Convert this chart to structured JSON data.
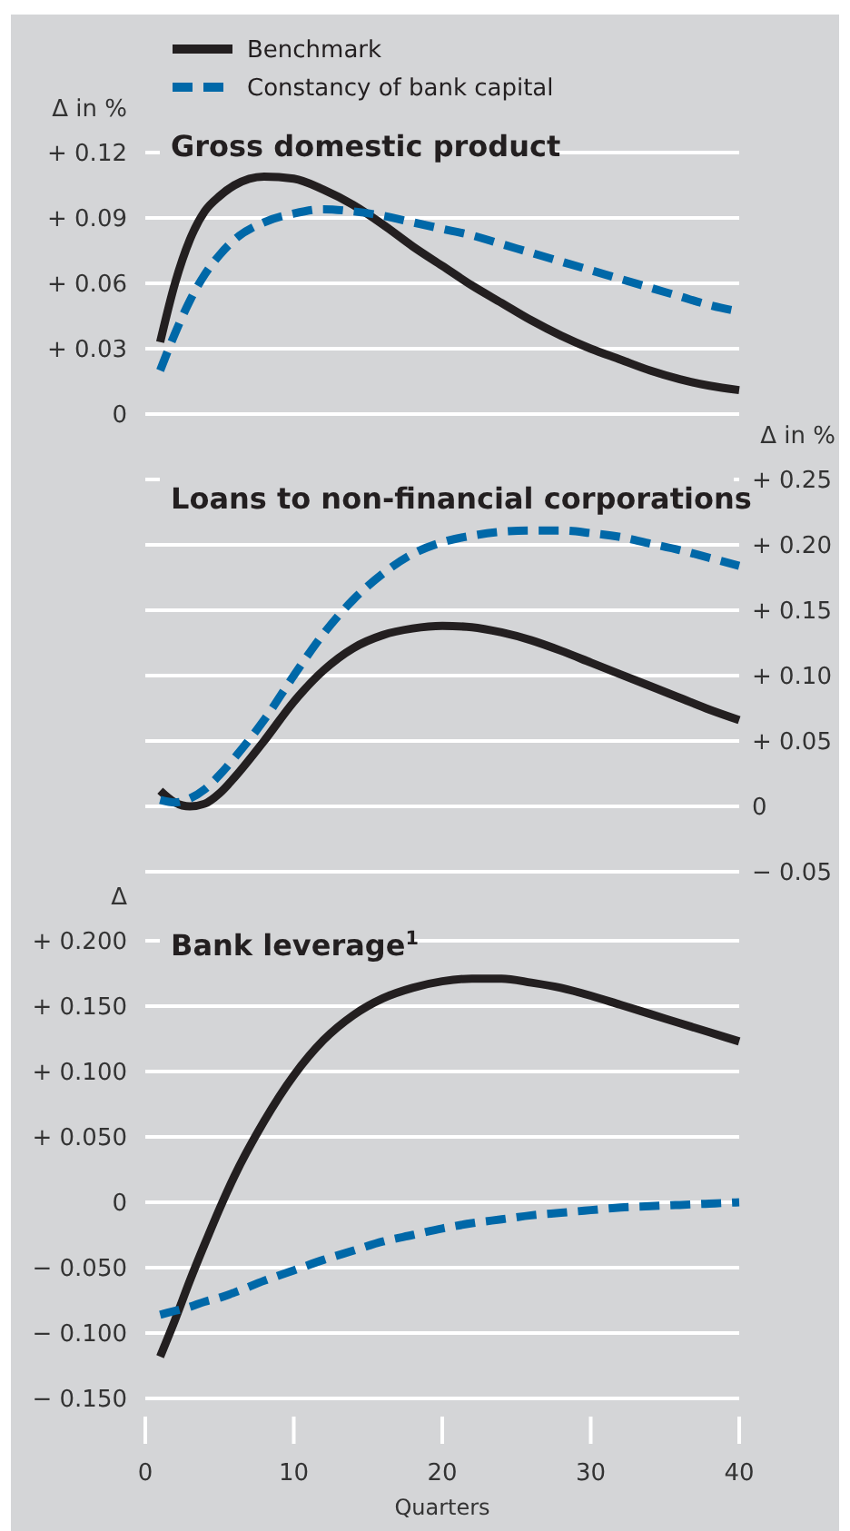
{
  "chart_data": [
    {
      "type": "line",
      "title": "Gross domestic product",
      "ylabel": "Δ in %",
      "legend": "top left",
      "grid": "y",
      "tick_labels": "y",
      "xlim": [
        0,
        40
      ],
      "ylim": [
        0,
        0.12
      ],
      "yticks": [
        {
          "value": 0,
          "label": "0"
        },
        {
          "value": 0.03,
          "label": "+ 0.03"
        },
        {
          "value": 0.06,
          "label": "+ 0.06"
        },
        {
          "value": 0.09,
          "label": "+ 0.09"
        },
        {
          "value": 0.12,
          "label": "+ 0.12"
        }
      ],
      "x": [
        1,
        2,
        3,
        4,
        5,
        6,
        8,
        10,
        12,
        14,
        16,
        18,
        20,
        22,
        24,
        26,
        28,
        30,
        32,
        34,
        36,
        38,
        40
      ],
      "series": [
        {
          "name": "Benchmark",
          "color": "#231f20",
          "line_style": "solid",
          "values": [
            0.033,
            0.06,
            0.08,
            0.093,
            0.1,
            0.105,
            0.109,
            0.108,
            0.103,
            0.096,
            0.087,
            0.077,
            0.068,
            0.059,
            0.051,
            0.043,
            0.036,
            0.03,
            0.025,
            0.02,
            0.016,
            0.013,
            0.011
          ]
        },
        {
          "name": "Constancy of bank capital",
          "color": "#0068a8",
          "line_style": "dashed",
          "values": [
            0.02,
            0.037,
            0.052,
            0.064,
            0.073,
            0.08,
            0.088,
            0.092,
            0.094,
            0.093,
            0.091,
            0.088,
            0.085,
            0.082,
            0.078,
            0.074,
            0.07,
            0.066,
            0.062,
            0.058,
            0.054,
            0.05,
            0.047
          ]
        }
      ]
    },
    {
      "type": "line",
      "title": "Loans to non-financial corporations",
      "y2label": "Δ in %",
      "grid": "y",
      "tick_labels": "y",
      "xlim": [
        0,
        40
      ],
      "y2lim": [
        -0.05,
        0.25
      ],
      "y2ticks": [
        {
          "value": -0.05,
          "label": "− 0.05"
        },
        {
          "value": 0,
          "label": "0"
        },
        {
          "value": 0.05,
          "label": "+ 0.05"
        },
        {
          "value": 0.1,
          "label": "+ 0.10"
        },
        {
          "value": 0.15,
          "label": "+ 0.15"
        },
        {
          "value": 0.2,
          "label": "+ 0.20"
        },
        {
          "value": 0.25,
          "label": "+ 0.25"
        }
      ],
      "x": [
        1,
        2,
        3,
        4,
        5,
        6,
        8,
        10,
        12,
        14,
        16,
        18,
        20,
        22,
        24,
        26,
        28,
        30,
        32,
        34,
        36,
        38,
        40
      ],
      "series": [
        {
          "color": "#231f20",
          "axis": "y2",
          "line_style": "solid",
          "values": [
            0.012,
            0.003,
            0.0,
            0.002,
            0.01,
            0.022,
            0.05,
            0.08,
            0.104,
            0.121,
            0.131,
            0.136,
            0.138,
            0.137,
            0.133,
            0.127,
            0.119,
            0.11,
            0.101,
            0.092,
            0.083,
            0.074,
            0.066
          ]
        },
        {
          "color": "#0068a8",
          "axis": "y2",
          "line_style": "dashed",
          "values": [
            0.005,
            0.003,
            0.006,
            0.013,
            0.024,
            0.037,
            0.066,
            0.1,
            0.132,
            0.158,
            0.178,
            0.193,
            0.202,
            0.207,
            0.21,
            0.211,
            0.211,
            0.209,
            0.206,
            0.201,
            0.196,
            0.19,
            0.184
          ]
        }
      ]
    },
    {
      "type": "line",
      "title": "Bank leverage$^{1}$",
      "ylabel": "Δ",
      "xlabel": "Quarters",
      "grid": "y",
      "xlim": [
        0,
        40
      ],
      "xticks": [
        0,
        10,
        20,
        30,
        40
      ],
      "ylim": [
        -0.15,
        0.2
      ],
      "yticks": [
        {
          "value": -0.15,
          "label": "− 0.150"
        },
        {
          "value": -0.1,
          "label": "− 0.100"
        },
        {
          "value": -0.05,
          "label": "− 0.050"
        },
        {
          "value": 0,
          "label": "0"
        },
        {
          "value": 0.05,
          "label": "+ 0.050"
        },
        {
          "value": 0.1,
          "label": "+ 0.100"
        },
        {
          "value": 0.15,
          "label": "+ 0.150"
        },
        {
          "value": 0.2,
          "label": "+ 0.200"
        }
      ],
      "x": [
        1,
        2,
        3,
        4,
        5,
        6,
        8,
        10,
        12,
        14,
        16,
        18,
        20,
        22,
        24,
        26,
        28,
        30,
        32,
        34,
        36,
        38,
        40
      ],
      "series": [
        {
          "color": "#231f20",
          "line_style": "solid",
          "values": [
            -0.118,
            -0.09,
            -0.06,
            -0.032,
            -0.005,
            0.02,
            0.062,
            0.097,
            0.124,
            0.143,
            0.156,
            0.164,
            0.169,
            0.171,
            0.171,
            0.168,
            0.164,
            0.158,
            0.151,
            0.144,
            0.137,
            0.13,
            0.123
          ]
        },
        {
          "color": "#0068a8",
          "line_style": "dashed",
          "values": [
            -0.086,
            -0.083,
            -0.08,
            -0.076,
            -0.073,
            -0.069,
            -0.06,
            -0.052,
            -0.044,
            -0.037,
            -0.03,
            -0.025,
            -0.02,
            -0.016,
            -0.013,
            -0.01,
            -0.008,
            -0.006,
            -0.004,
            -0.003,
            -0.002,
            -0.001,
            0
          ]
        }
      ]
    }
  ]
}
